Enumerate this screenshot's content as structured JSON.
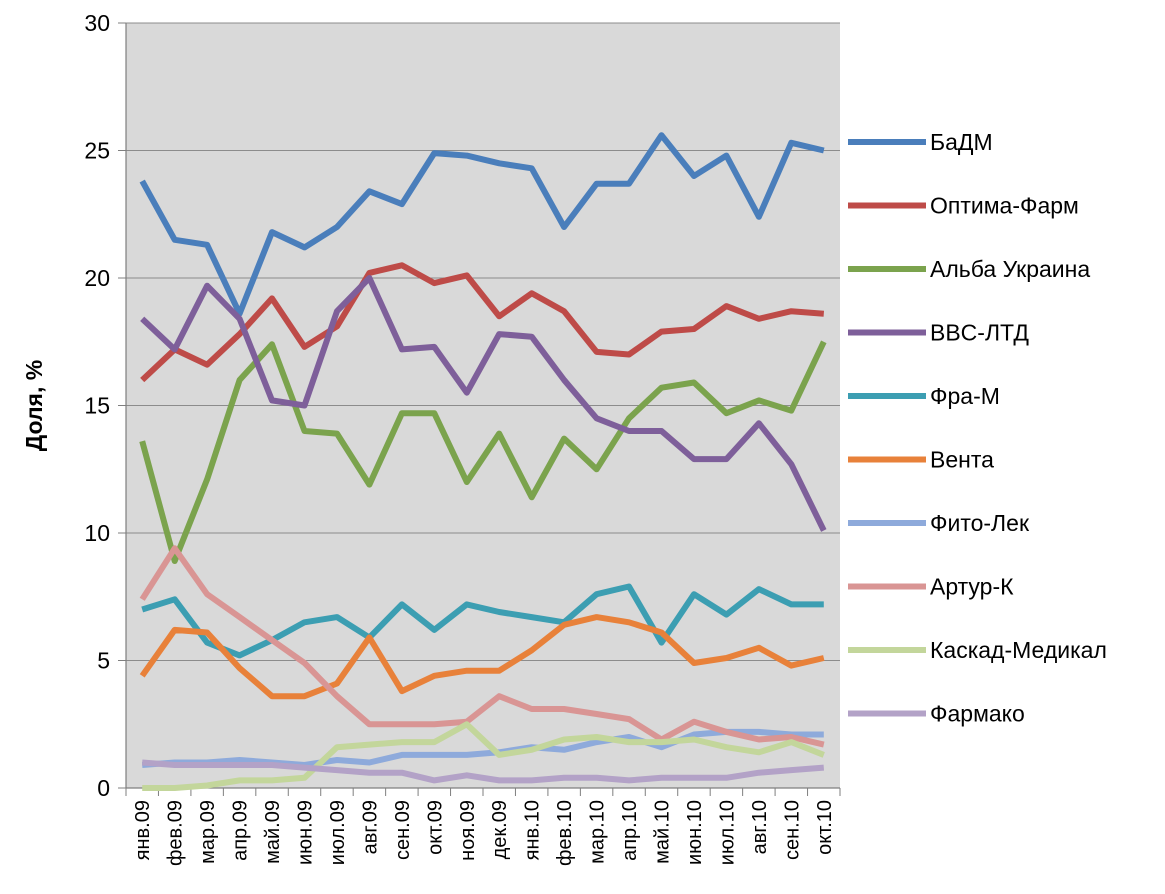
{
  "chart_data": {
    "type": "line",
    "title": "",
    "xlabel": "",
    "ylabel": "Доля, %",
    "ylim": [
      0,
      30
    ],
    "yticks": [
      "0",
      "5",
      "10",
      "15",
      "20",
      "25",
      "30"
    ],
    "grid": true,
    "legend_position": "right",
    "plot_background": "#d9d9d9",
    "categories": [
      "янв.09",
      "фев.09",
      "мар.09",
      "апр.09",
      "май.09",
      "июн.09",
      "июл.09",
      "авг.09",
      "сен.09",
      "окт.09",
      "ноя.09",
      "дек.09",
      "янв.10",
      "фев.10",
      "мар.10",
      "апр.10",
      "май.10",
      "июн.10",
      "июл.10",
      "авг.10",
      "сен.10",
      "окт.10"
    ],
    "series": [
      {
        "name": "БаДМ",
        "color": "#4a7ebb",
        "values": [
          23.8,
          21.5,
          21.3,
          18.6,
          21.8,
          21.2,
          22.0,
          23.4,
          22.9,
          24.9,
          24.8,
          24.5,
          24.3,
          22.0,
          23.7,
          23.7,
          25.6,
          24.0,
          24.8,
          22.4,
          25.3,
          25.0
        ]
      },
      {
        "name": "Оптима-Фарм",
        "color": "#be4b48",
        "values": [
          16.0,
          17.2,
          16.6,
          17.8,
          19.2,
          17.3,
          18.1,
          20.2,
          20.5,
          19.8,
          20.1,
          18.5,
          19.4,
          18.7,
          17.1,
          17.0,
          17.9,
          18.0,
          18.9,
          18.4,
          18.7,
          18.6
        ]
      },
      {
        "name": "Альба Украина",
        "color": "#7ba34d",
        "values": [
          13.6,
          8.9,
          12.1,
          16.0,
          17.4,
          14.0,
          13.9,
          11.9,
          14.7,
          14.7,
          12.0,
          13.9,
          11.4,
          13.7,
          12.5,
          14.5,
          15.7,
          15.9,
          14.7,
          15.2,
          14.8,
          17.5
        ]
      },
      {
        "name": "BBC-ЛТД",
        "color": "#7e5f9a",
        "values": [
          18.4,
          17.2,
          19.7,
          18.4,
          15.2,
          15.0,
          18.7,
          20.0,
          17.2,
          17.3,
          15.5,
          17.8,
          17.7,
          16.0,
          14.5,
          14.0,
          14.0,
          12.9,
          12.9,
          14.3,
          12.7,
          10.1
        ]
      },
      {
        "name": "Фра-М",
        "color": "#3c9eb2",
        "values": [
          7.0,
          7.4,
          5.7,
          5.2,
          5.8,
          6.5,
          6.7,
          5.9,
          7.2,
          6.2,
          7.2,
          6.9,
          6.7,
          6.5,
          7.6,
          7.9,
          5.7,
          7.6,
          6.8,
          7.8,
          7.2,
          7.2
        ]
      },
      {
        "name": "Вента",
        "color": "#e8813a",
        "values": [
          4.4,
          6.2,
          6.1,
          4.7,
          3.6,
          3.6,
          4.1,
          5.9,
          3.8,
          4.4,
          4.6,
          4.6,
          5.4,
          6.4,
          6.7,
          6.5,
          6.1,
          4.9,
          5.1,
          5.5,
          4.8,
          5.1
        ]
      },
      {
        "name": "Фито-Лек",
        "color": "#8eaadb",
        "values": [
          0.9,
          1.0,
          1.0,
          1.1,
          1.0,
          0.9,
          1.1,
          1.0,
          1.3,
          1.3,
          1.3,
          1.4,
          1.6,
          1.5,
          1.8,
          2.0,
          1.6,
          2.1,
          2.2,
          2.2,
          2.1,
          2.1
        ]
      },
      {
        "name": "Артур-К",
        "color": "#d99594",
        "values": [
          7.4,
          9.4,
          7.6,
          6.7,
          5.8,
          4.9,
          3.6,
          2.5,
          2.5,
          2.5,
          2.6,
          3.6,
          3.1,
          3.1,
          2.9,
          2.7,
          1.9,
          2.6,
          2.2,
          1.9,
          2.0,
          1.7
        ]
      },
      {
        "name": "Каскад-Медикал",
        "color": "#c3d69b",
        "values": [
          0.0,
          0.0,
          0.1,
          0.3,
          0.3,
          0.4,
          1.6,
          1.7,
          1.8,
          1.8,
          2.5,
          1.3,
          1.5,
          1.9,
          2.0,
          1.8,
          1.8,
          1.9,
          1.6,
          1.4,
          1.8,
          1.3
        ]
      },
      {
        "name": "Фармако",
        "color": "#b3a2c7",
        "values": [
          1.0,
          0.9,
          0.9,
          0.9,
          0.9,
          0.8,
          0.7,
          0.6,
          0.6,
          0.3,
          0.5,
          0.3,
          0.3,
          0.4,
          0.4,
          0.3,
          0.4,
          0.4,
          0.4,
          0.6,
          0.7,
          0.8
        ]
      }
    ]
  }
}
